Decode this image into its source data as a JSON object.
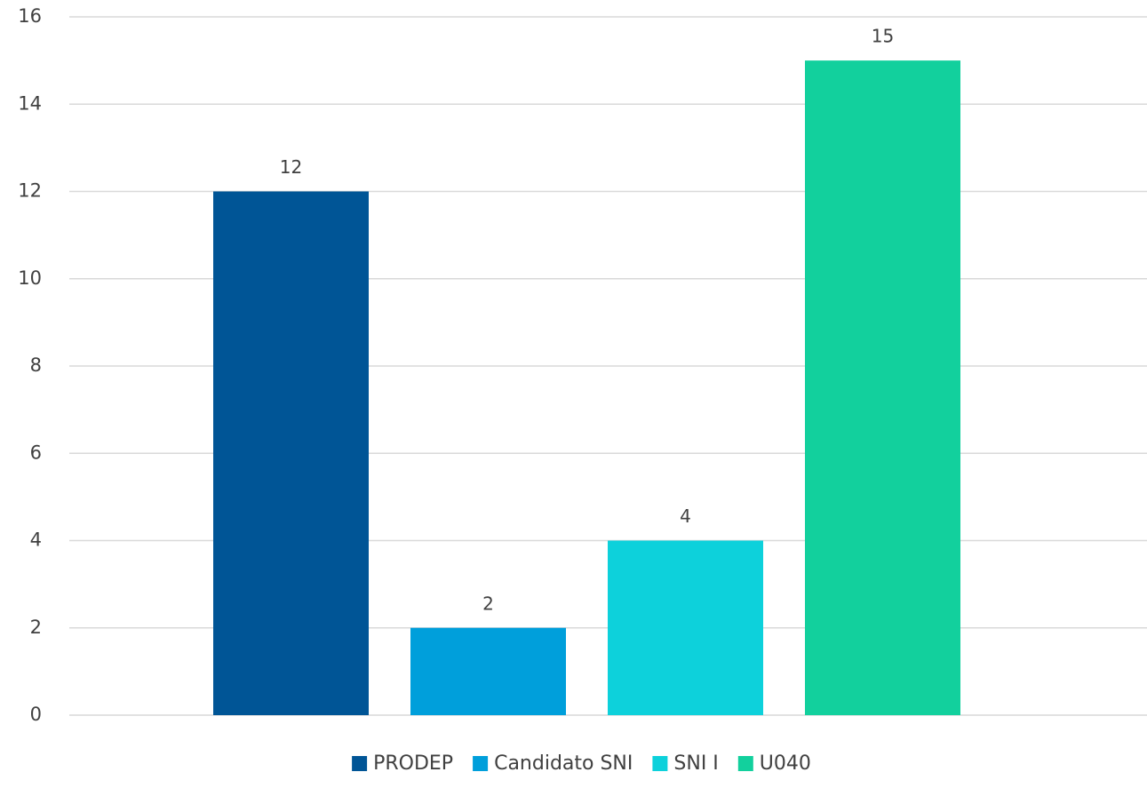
{
  "chart_data": {
    "type": "bar",
    "categories": [
      null
    ],
    "series": [
      {
        "name": "PRODEP",
        "color": "#005596",
        "values": [
          12
        ]
      },
      {
        "name": "Candidato SNI",
        "color": "#009fdb",
        "values": [
          2
        ]
      },
      {
        "name": "SNI I",
        "color": "#0dd1db",
        "values": [
          4
        ]
      },
      {
        "name": "U040",
        "color": "#12d09d",
        "values": [
          15
        ]
      }
    ],
    "ylim": [
      0,
      16
    ],
    "yticks": [
      0,
      2,
      4,
      6,
      8,
      10,
      12,
      14,
      16
    ],
    "grid": true,
    "legend": "bottom"
  }
}
